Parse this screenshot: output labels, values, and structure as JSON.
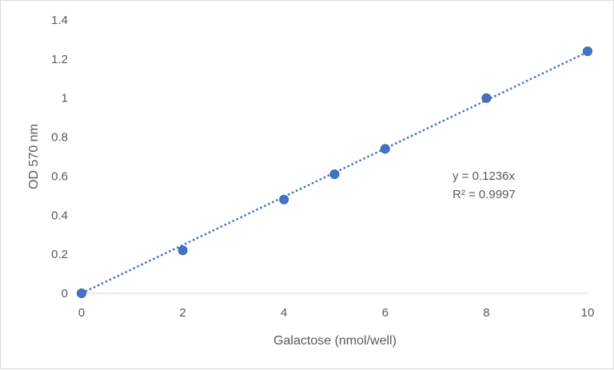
{
  "chart_data": {
    "type": "scatter",
    "title": "",
    "xlabel": "Galactose (nmol/well)",
    "ylabel": "OD 570 nm",
    "xlim": [
      0,
      10
    ],
    "ylim": [
      0,
      1.4
    ],
    "xticks": [
      "0",
      "2",
      "4",
      "6",
      "8",
      "10"
    ],
    "yticks": [
      "0",
      "0.2",
      "0.4",
      "0.6",
      "0.8",
      "1",
      "1.2",
      "1.4"
    ],
    "grid": false,
    "x": [
      0,
      2,
      4,
      5,
      6,
      8,
      10
    ],
    "y": [
      0,
      0.22,
      0.48,
      0.61,
      0.74,
      1.0,
      1.24
    ],
    "trendline": {
      "type": "linear",
      "slope": 0.1236,
      "intercept": 0,
      "style": "dotted"
    },
    "equation": "y = 0.1236x",
    "r_squared": "R² = 0.9997",
    "colors": {
      "marker": "#4472c4",
      "trendline": "#4472c4",
      "axis": "#d9d9d9"
    }
  }
}
